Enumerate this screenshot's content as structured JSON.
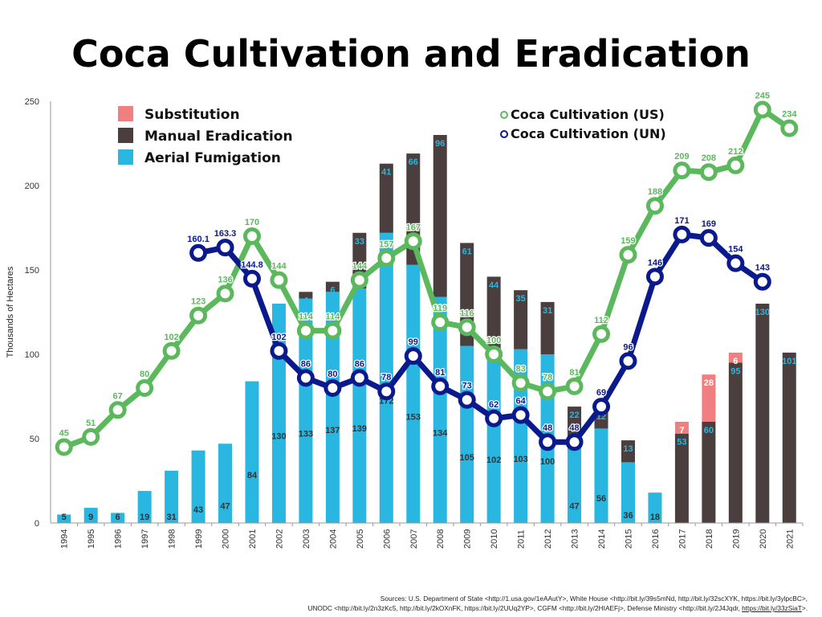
{
  "title": "Coca Cultivation and Eradication",
  "sources": {
    "line1": "Sources: U.S. Department of State <http://1.usa.gov/1eAAutY>, White House <http://bit.ly/39s5mNd, http://bit.ly/32scXYK, https://bit.ly/3ylpcBC>,",
    "line2": "UNODC <http://bit.ly/2n3zKc5, http://bit.ly/2kOXnFK, https://bit.ly/2UUq2YP>, CGFM <http://bit.ly/2HIAEFj>, Defense Ministry <http://bit.ly/2J4Jqdr, ",
    "line2_link": "https://bit.ly/33zSiaT",
    "line2_end": ">."
  },
  "chart_data": {
    "type": "bar",
    "ylabel": "Thousands of Hectares",
    "xlabel": "",
    "ylim": [
      0,
      250
    ],
    "yticks": [
      0,
      50,
      100,
      150,
      200,
      250
    ],
    "grid": false,
    "legend_bars_position": "top-left",
    "legend_lines_position": "top-right",
    "categories": [
      "1994",
      "1995",
      "1996",
      "1997",
      "1998",
      "1999",
      "2000",
      "2001",
      "2002",
      "2003",
      "2004",
      "2005",
      "2006",
      "2007",
      "2008",
      "2009",
      "2010",
      "2011",
      "2012",
      "2013",
      "2014",
      "2015",
      "2016",
      "2017",
      "2018",
      "2019",
      "2020",
      "2021"
    ],
    "bar_series": [
      {
        "name": "Aerial Fumigation",
        "color": "#29b6e0",
        "values": [
          5,
          9,
          6,
          19,
          31,
          43,
          47,
          84,
          130,
          133,
          137,
          139,
          172,
          153,
          134,
          105,
          102,
          103,
          100,
          47,
          56,
          36,
          18,
          null,
          null,
          null,
          null,
          null
        ],
        "labels": [
          "5",
          "9",
          "6",
          "19",
          "31",
          "43",
          "47",
          "84",
          "130",
          "133",
          "137",
          "139",
          "172",
          "153",
          "134",
          "105",
          "102",
          "103",
          "100",
          "47",
          "56",
          "36",
          "18",
          "",
          "",
          "",
          "",
          ""
        ]
      },
      {
        "name": "Manual Eradication",
        "color": "#4a3e3e",
        "values": [
          null,
          null,
          null,
          null,
          null,
          null,
          null,
          null,
          null,
          4,
          6,
          33,
          41,
          66,
          96,
          61,
          44,
          35,
          31,
          22,
          12,
          13,
          null,
          53,
          60,
          95,
          130,
          101
        ],
        "labels": [
          "",
          "",
          "",
          "",
          "",
          "",
          "",
          "",
          "",
          "4",
          "6",
          "33",
          "41",
          "66",
          "96",
          "61",
          "44",
          "35",
          "31",
          "22",
          "12",
          "13",
          "",
          "53",
          "60",
          "95",
          "130",
          "101"
        ]
      },
      {
        "name": "Substitution",
        "color": "#f08080",
        "values": [
          null,
          null,
          null,
          null,
          null,
          null,
          null,
          null,
          null,
          null,
          null,
          null,
          null,
          null,
          null,
          null,
          null,
          null,
          null,
          null,
          null,
          null,
          null,
          7,
          28,
          6,
          null,
          null
        ],
        "labels": [
          "",
          "",
          "",
          "",
          "",
          "",
          "",
          "",
          "",
          "",
          "",
          "",
          "",
          "",
          "",
          "",
          "",
          "",
          "",
          "",
          "",
          "",
          "",
          "7",
          "28",
          "6",
          "",
          ""
        ]
      }
    ],
    "line_series": [
      {
        "name": "Coca Cultivation (US)",
        "color": "#5cb85c",
        "values": [
          45,
          51,
          67,
          80,
          102,
          123,
          136,
          170,
          144,
          114,
          114,
          144,
          157,
          167,
          119,
          116,
          100,
          83,
          78,
          81,
          112,
          159,
          188,
          209,
          208,
          212,
          245,
          234
        ],
        "labels": [
          "45",
          "51",
          "67",
          "80",
          "102",
          "123",
          "136",
          "170",
          "144",
          "114",
          "114",
          "144",
          "157",
          "167",
          "119",
          "116",
          "100",
          "83",
          "78",
          "81",
          "112",
          "159",
          "188",
          "209",
          "208",
          "212",
          "245",
          "234"
        ]
      },
      {
        "name": "Coca Cultivation (UN)",
        "color": "#0a1a8c",
        "values": [
          null,
          null,
          null,
          null,
          null,
          160.1,
          163.3,
          144.8,
          102,
          86,
          80,
          86,
          78,
          99,
          81,
          73,
          62,
          64,
          48,
          48,
          69,
          96,
          146,
          171,
          169,
          154,
          143,
          null
        ],
        "labels": [
          "",
          "",
          "",
          "",
          "",
          "160.1",
          "163.3",
          "144.8",
          "102",
          "86",
          "80",
          "86",
          "78",
          "99",
          "81",
          "73",
          "62",
          "64",
          "48",
          "48",
          "69",
          "96",
          "146",
          "171",
          "169",
          "154",
          "143",
          ""
        ]
      }
    ]
  }
}
